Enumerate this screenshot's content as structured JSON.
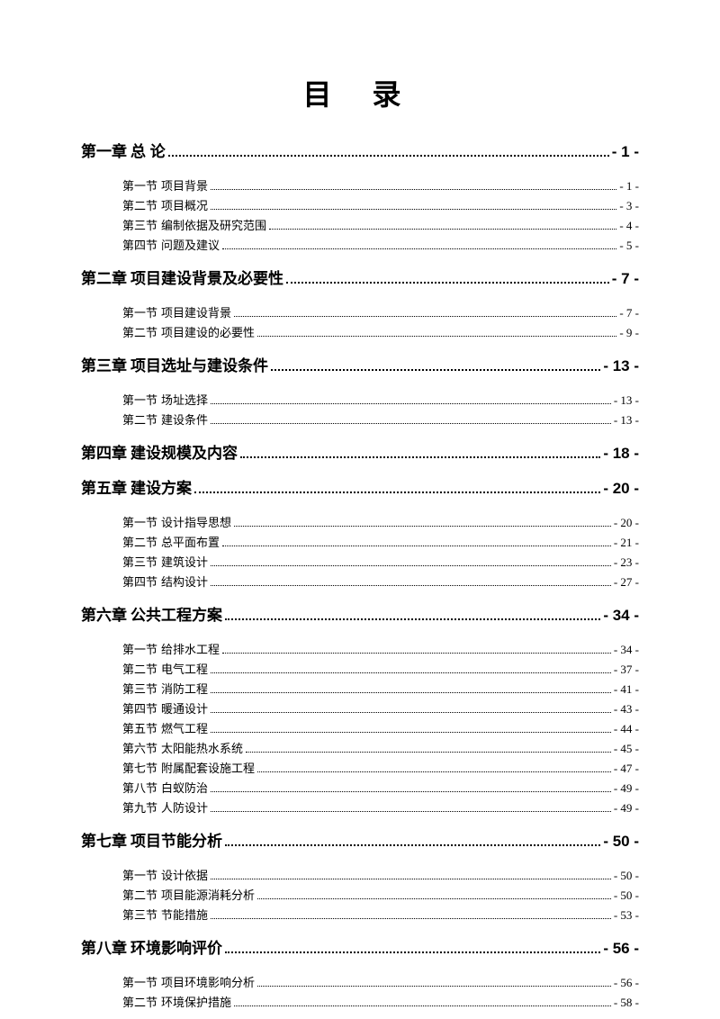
{
  "title": "目  录",
  "chapters": [
    {
      "label": "第一章",
      "title": "总   论",
      "page": "- 1 -",
      "sections": [
        {
          "label": "第一节",
          "title": "项目背景",
          "page": "- 1 -"
        },
        {
          "label": "第二节",
          "title": "项目概况",
          "page": "- 3 -"
        },
        {
          "label": "第三节",
          "title": "编制依据及研究范围",
          "page": "- 4 -"
        },
        {
          "label": "第四节",
          "title": "问题及建议",
          "page": "- 5 -"
        }
      ]
    },
    {
      "label": "第二章",
      "title": "项目建设背景及必要性",
      "page": "- 7 -",
      "sections": [
        {
          "label": "第一节",
          "title": "项目建设背景",
          "page": "- 7 -"
        },
        {
          "label": "第二节",
          "title": "项目建设的必要性",
          "page": "- 9 -"
        }
      ]
    },
    {
      "label": "第三章",
      "title": "项目选址与建设条件",
      "page": "- 13 -",
      "sections": [
        {
          "label": "第一节",
          "title": "场址选择",
          "page": "- 13 -"
        },
        {
          "label": "第二节",
          "title": "建设条件",
          "page": "- 13 -"
        }
      ]
    },
    {
      "label": "第四章",
      "title": "建设规模及内容",
      "page": "- 18 -",
      "sections": []
    },
    {
      "label": "第五章",
      "title": "建设方案",
      "page": "- 20 -",
      "sections": [
        {
          "label": "第一节",
          "title": "设计指导思想",
          "page": "- 20 -"
        },
        {
          "label": "第二节",
          "title": "总平面布置",
          "page": "- 21 -"
        },
        {
          "label": "第三节",
          "title": "建筑设计",
          "page": "- 23 -"
        },
        {
          "label": "第四节",
          "title": "结构设计",
          "page": "- 27 -"
        }
      ]
    },
    {
      "label": "第六章",
      "title": "公共工程方案",
      "page": "- 34 -",
      "sections": [
        {
          "label": "第一节",
          "title": "给排水工程",
          "page": "- 34 -"
        },
        {
          "label": "第二节",
          "title": "电气工程",
          "page": "- 37 -"
        },
        {
          "label": "第三节",
          "title": "消防工程",
          "page": "- 41 -"
        },
        {
          "label": "第四节",
          "title": "暖通设计",
          "page": "- 43 -"
        },
        {
          "label": "第五节",
          "title": "燃气工程",
          "page": "- 44 -"
        },
        {
          "label": "第六节",
          "title": "太阳能热水系统",
          "page": "- 45 -"
        },
        {
          "label": "第七节",
          "title": "附属配套设施工程",
          "page": "- 47 -"
        },
        {
          "label": "第八节",
          "title": "白蚁防治",
          "page": "- 49 -"
        },
        {
          "label": "第九节",
          "title": "人防设计",
          "page": "- 49 -"
        }
      ]
    },
    {
      "label": "第七章",
      "title": "项目节能分析",
      "page": "- 50 -",
      "sections": [
        {
          "label": "第一节",
          "title": "设计依据",
          "page": "- 50 -"
        },
        {
          "label": "第二节",
          "title": "项目能源消耗分析",
          "page": "- 50 -"
        },
        {
          "label": "第三节",
          "title": "节能措施",
          "page": "- 53 -"
        }
      ]
    },
    {
      "label": "第八章",
      "title": "环境影响评价",
      "page": "- 56 -",
      "sections": [
        {
          "label": "第一节",
          "title": "项目环境影响分析",
          "page": "- 56 -"
        },
        {
          "label": "第二节",
          "title": "环境保护措施",
          "page": "- 58 -"
        }
      ]
    }
  ],
  "colors": {
    "background": "#ffffff",
    "text": "#000000"
  },
  "typography": {
    "title_fontsize": 32,
    "chapter_fontsize": 17,
    "section_fontsize": 13
  }
}
